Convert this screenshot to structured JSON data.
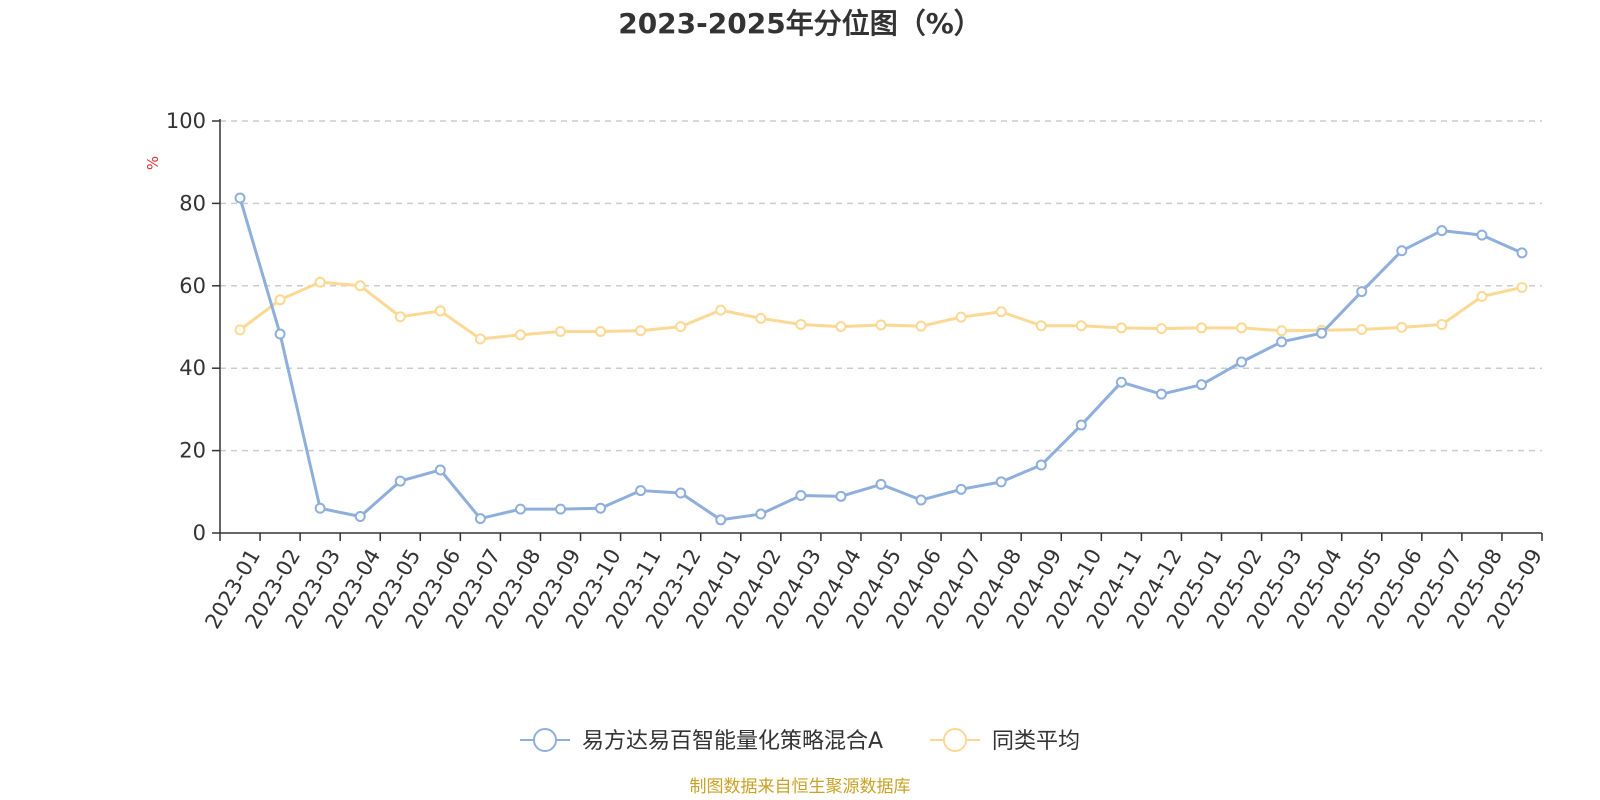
{
  "chart_data": {
    "type": "line",
    "title": "2023-2025年分位图（%）",
    "ylabel": "%",
    "xlabel": "",
    "ylim": [
      0,
      100
    ],
    "yticks": [
      0,
      20,
      40,
      60,
      80,
      100
    ],
    "grid": true,
    "legend_position": "bottom",
    "categories": [
      "2023-01",
      "2023-02",
      "2023-03",
      "2023-04",
      "2023-05",
      "2023-06",
      "2023-07",
      "2023-08",
      "2023-09",
      "2023-10",
      "2023-11",
      "2023-12",
      "2024-01",
      "2024-02",
      "2024-03",
      "2024-04",
      "2024-05",
      "2024-06",
      "2024-07",
      "2024-08",
      "2024-09",
      "2024-10",
      "2024-11",
      "2024-12",
      "2025-01",
      "2025-02",
      "2025-03",
      "2025-04",
      "2025-05",
      "2025-06",
      "2025-07",
      "2025-08",
      "2025-09"
    ],
    "series": [
      {
        "name": "易方达易百智能量化策略混合A",
        "color": "#8eaedb",
        "values": [
          81.3,
          48.3,
          6.0,
          4.0,
          12.6,
          15.3,
          3.5,
          5.8,
          5.8,
          6.0,
          10.3,
          9.7,
          3.2,
          4.6,
          9.1,
          8.9,
          11.8,
          8.0,
          10.6,
          12.4,
          16.5,
          26.2,
          36.6,
          33.7,
          36.0,
          41.5,
          46.4,
          48.5,
          58.6,
          68.5,
          73.4,
          72.3,
          68.0
        ]
      },
      {
        "name": "同类平均",
        "color": "#fbd994",
        "values": [
          49.3,
          56.6,
          60.9,
          60.0,
          52.5,
          53.9,
          47.1,
          48.1,
          48.9,
          48.9,
          49.1,
          50.1,
          54.1,
          52.1,
          50.6,
          50.1,
          50.5,
          50.2,
          52.4,
          53.7,
          50.3,
          50.3,
          49.8,
          49.6,
          49.8,
          49.8,
          49.1,
          49.2,
          49.4,
          49.9,
          50.6,
          57.4,
          59.6
        ]
      }
    ],
    "source": "制图数据来自恒生聚源数据库",
    "source_color": "#c9a227",
    "unit_color": "#e03030"
  }
}
